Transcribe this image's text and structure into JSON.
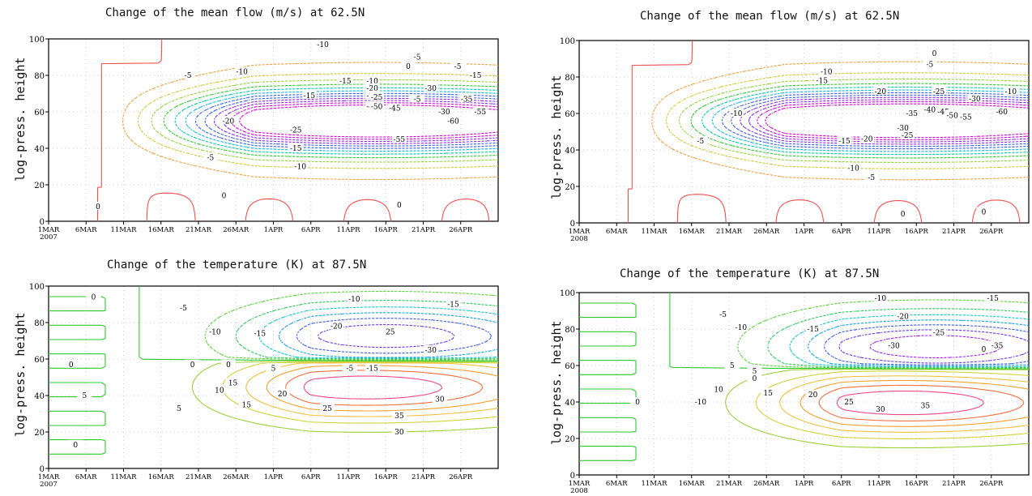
{
  "chart_data": [
    {
      "type": "contour",
      "title": "Change of the mean flow (m/s) at 62.5N",
      "ylabel": "log-press. height",
      "xlabel": "",
      "ylim": [
        0,
        100
      ],
      "yticks": [
        0,
        20,
        40,
        60,
        80,
        100
      ],
      "xticks": [
        "1MAR",
        "6MAR",
        "11MAR",
        "16MAR",
        "21MAR",
        "26MAR",
        "1APR",
        "6APR",
        "11APR",
        "16APR",
        "21APR",
        "26APR"
      ],
      "year_label": "2007",
      "contour_levels": [
        -60,
        -55,
        -50,
        -45,
        -40,
        -35,
        -30,
        -25,
        -20,
        -15,
        -10,
        -5,
        0
      ],
      "contour_labels": [
        "-10",
        "-5",
        "0",
        "-5",
        "-10",
        "-15",
        "-10",
        "-15",
        "-20",
        "-25",
        "-30",
        "-35",
        "-40",
        "-45",
        "-50",
        "-60",
        "-55",
        "-55",
        "-30",
        "-20",
        "-25",
        "-15",
        "-10",
        "-5",
        "0",
        "0",
        "0",
        "-5",
        "-15",
        "-25",
        "-5"
      ],
      "field": {
        "center": [
          17.5,
          55
        ],
        "peak": -60,
        "rx": 16,
        "ry": 17,
        "top_level": 12
      }
    },
    {
      "type": "contour",
      "title": "Change of the mean flow (m/s) at 62.5N",
      "ylabel": "log-press. height",
      "xlabel": "",
      "ylim": [
        0,
        100
      ],
      "yticks": [
        0,
        20,
        40,
        60,
        80,
        100
      ],
      "xticks": [
        "1MAR",
        "6MAR",
        "11MAR",
        "16MAR",
        "21MAR",
        "26MAR",
        "1APR",
        "6APR",
        "11APR",
        "16APR",
        "21APR",
        "26APR"
      ],
      "year_label": "2008",
      "contour_levels": [
        -60,
        -55,
        -50,
        -45,
        -40,
        -35,
        -30,
        -25,
        -20,
        -15,
        -10,
        -5,
        0
      ],
      "contour_labels": [
        "0",
        "-5",
        "-10",
        "-10",
        "-15",
        "-20",
        "-25",
        "-30",
        "-10",
        "-35",
        "-40",
        "-45",
        "-50",
        "-55",
        "-60",
        "-30",
        "-25",
        "-20",
        "-15",
        "-5",
        "-10",
        "-5",
        "0",
        "0"
      ],
      "field": {
        "center": [
          17.5,
          56
        ],
        "peak": -62,
        "rx": 17,
        "ry": 17,
        "top_level": 8
      }
    },
    {
      "type": "contour",
      "title": "Change of the temperature (K) at 87.5N",
      "ylabel": "log-press. height",
      "xlabel": "",
      "ylim": [
        0,
        100
      ],
      "yticks": [
        0,
        20,
        40,
        60,
        80,
        100
      ],
      "xticks": [
        "1MAR",
        "6MAR",
        "11MAR",
        "16MAR",
        "21MAR",
        "26MAR",
        "1APR",
        "6APR",
        "11APR",
        "16APR",
        "21APR",
        "26APR"
      ],
      "year_label": "2007",
      "contour_levels": [
        -35,
        -30,
        -25,
        -20,
        -15,
        -10,
        -5,
        0,
        5,
        10,
        15,
        20,
        25,
        30,
        35
      ],
      "contour_labels": [
        "-10",
        "-15",
        "-5",
        "-10",
        "-20",
        "25",
        "-15",
        "-30",
        "0",
        "5",
        "-5",
        "-15",
        "15",
        "5",
        "0",
        "10",
        "15",
        "20",
        "25",
        "30",
        "35",
        "30",
        "0",
        "0",
        "5",
        "0"
      ],
      "field": {
        "top_center": [
          18,
          72
        ],
        "top_peak": -35,
        "bottom_center": [
          17,
          45
        ],
        "bottom_peak": 35
      }
    },
    {
      "type": "contour",
      "title": "Change of the temperature (K) at 87.5N",
      "ylabel": "log-press. height",
      "xlabel": "",
      "ylim": [
        0,
        100
      ],
      "yticks": [
        0,
        20,
        40,
        60,
        80,
        100
      ],
      "xticks": [
        "1MAR",
        "6MAR",
        "11MAR",
        "16MAR",
        "21MAR",
        "26MAR",
        "1APR",
        "6APR",
        "11APR",
        "16APR",
        "21APR",
        "26APR"
      ],
      "year_label": "2008",
      "contour_levels": [
        -35,
        -30,
        -25,
        -20,
        -15,
        -10,
        -5,
        0,
        5,
        10,
        15,
        20,
        25,
        30,
        35
      ],
      "contour_labels": [
        "-10",
        "-15",
        "-5",
        "-10",
        "-20",
        "-25",
        "-15",
        "-35",
        "-30",
        "5",
        "0",
        "10",
        "15",
        "20",
        "25",
        "30",
        "35",
        "-10",
        "0",
        "0",
        "5"
      ],
      "field": {
        "top_center": [
          19,
          70
        ],
        "top_peak": -40,
        "bottom_center": [
          17.5,
          40
        ],
        "bottom_peak": 35
      }
    }
  ]
}
